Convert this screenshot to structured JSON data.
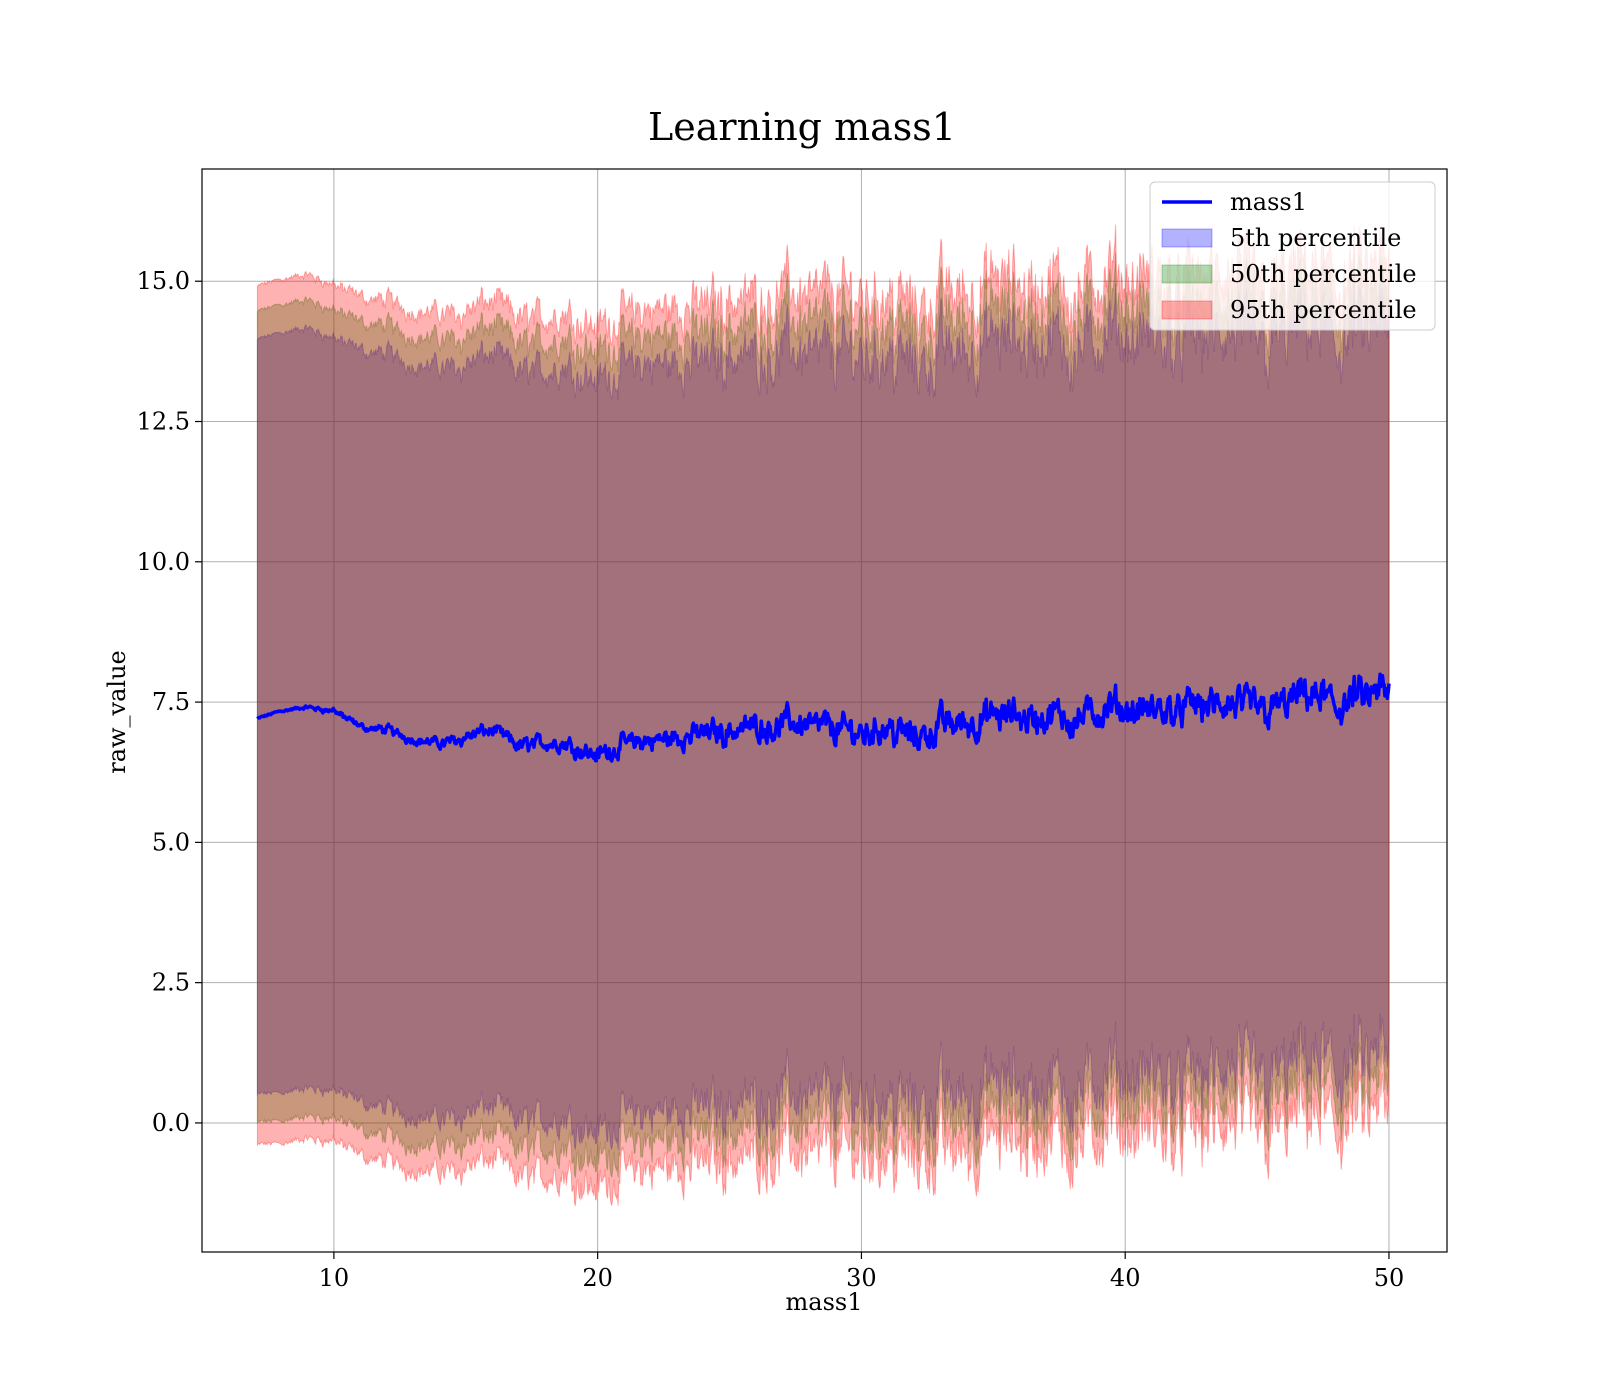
{
  "chart_data": {
    "type": "area",
    "title": "Learning mass1",
    "xlabel": "mass1",
    "ylabel": "raw_value",
    "xlim": [
      5,
      52.2
    ],
    "ylim": [
      -2.3,
      17
    ],
    "xticks": [
      10,
      20,
      30,
      40,
      50
    ],
    "yticks": [
      0,
      2.5,
      5,
      7.5,
      10,
      12.5,
      15
    ],
    "ytick_labels": [
      "0.0",
      "2.5",
      "5.0",
      "7.5",
      "10.0",
      "12.5",
      "15.0"
    ],
    "grid": true,
    "legend_position": "top-right",
    "x_range": [
      7.1,
      50
    ],
    "mean_line": {
      "name": "mass1",
      "color": "#0000ff",
      "x": [
        7.1,
        8,
        9,
        10,
        11,
        12,
        13,
        14,
        15,
        16,
        17,
        18,
        19,
        20,
        21,
        22,
        23,
        24,
        25,
        26,
        27,
        28,
        29,
        30,
        31,
        32,
        33,
        34,
        35,
        36,
        37,
        38,
        39,
        40,
        41,
        42,
        43,
        44,
        45,
        46,
        47,
        48,
        49,
        50
      ],
      "y": [
        7.2,
        7.35,
        7.4,
        7.35,
        7.05,
        7.0,
        6.85,
        6.75,
        6.9,
        7.0,
        6.7,
        6.8,
        6.75,
        6.55,
        6.75,
        6.8,
        6.85,
        6.95,
        7.0,
        7.1,
        7.1,
        7.15,
        7.0,
        6.95,
        7.1,
        6.85,
        7.1,
        7.15,
        7.2,
        7.25,
        7.2,
        7.25,
        7.3,
        7.35,
        7.3,
        7.4,
        7.45,
        7.35,
        7.4,
        7.45,
        7.6,
        7.45,
        7.55,
        7.6
      ],
      "noise": [
        0.02,
        0.02,
        0.03,
        0.05,
        0.05,
        0.07,
        0.07,
        0.08,
        0.1,
        0.1,
        0.12,
        0.12,
        0.13,
        0.15,
        0.15,
        0.15,
        0.17,
        0.18,
        0.2,
        0.2,
        0.22,
        0.22,
        0.22,
        0.22,
        0.25,
        0.25,
        0.25,
        0.25,
        0.25,
        0.25,
        0.25,
        0.25,
        0.25,
        0.25,
        0.25,
        0.25,
        0.27,
        0.27,
        0.27,
        0.27,
        0.28,
        0.28,
        0.28,
        0.3
      ]
    },
    "bands": [
      {
        "name": "5th percentile",
        "color": "#0000ff",
        "upper": [
          13.95,
          14.1,
          14.15,
          14.0,
          13.75,
          13.7,
          13.55,
          13.45,
          13.55,
          13.7,
          13.35,
          13.45,
          13.5,
          13.25,
          13.45,
          13.5,
          13.5,
          13.6,
          13.7,
          13.7,
          13.75,
          13.8,
          13.65,
          13.7,
          13.8,
          13.45,
          13.75,
          13.8,
          13.85,
          13.9,
          13.85,
          13.85,
          13.9,
          13.95,
          13.9,
          13.95,
          14.0,
          13.85,
          13.9,
          14.0,
          14.1,
          13.95,
          14.0,
          14.05
        ],
        "lower": [
          0.5,
          0.55,
          0.6,
          0.6,
          0.35,
          0.25,
          0.15,
          0.05,
          0.2,
          0.3,
          0.0,
          0.1,
          0.1,
          -0.15,
          0.1,
          0.15,
          0.2,
          0.3,
          0.35,
          0.45,
          0.5,
          0.5,
          0.45,
          0.45,
          0.55,
          0.3,
          0.5,
          0.55,
          0.6,
          0.65,
          0.6,
          0.65,
          0.75,
          0.8,
          0.75,
          0.8,
          0.85,
          0.8,
          0.85,
          0.9,
          1.05,
          0.95,
          1.0,
          1.05
        ]
      },
      {
        "name": "50th percentile",
        "color": "#008000",
        "upper": [
          14.45,
          14.6,
          14.65,
          14.5,
          14.25,
          14.2,
          14.05,
          13.95,
          14.05,
          14.2,
          13.85,
          13.95,
          14.0,
          13.75,
          13.95,
          14.0,
          14.0,
          14.1,
          14.2,
          14.25,
          14.3,
          14.35,
          14.2,
          14.25,
          14.35,
          14.0,
          14.3,
          14.35,
          14.4,
          14.45,
          14.4,
          14.4,
          14.45,
          14.5,
          14.45,
          14.5,
          14.55,
          14.4,
          14.45,
          14.55,
          14.65,
          14.5,
          14.55,
          14.6
        ],
        "lower": [
          0.0,
          0.05,
          0.1,
          0.1,
          -0.15,
          -0.25,
          -0.35,
          -0.45,
          -0.3,
          -0.2,
          -0.5,
          -0.4,
          -0.4,
          -0.65,
          -0.4,
          -0.35,
          -0.3,
          -0.2,
          -0.15,
          -0.05,
          0.0,
          0.0,
          -0.05,
          -0.05,
          0.05,
          -0.2,
          0.0,
          0.05,
          0.1,
          0.15,
          0.1,
          0.15,
          0.25,
          0.3,
          0.25,
          0.3,
          0.35,
          0.3,
          0.35,
          0.4,
          0.55,
          0.45,
          0.5,
          0.55
        ]
      },
      {
        "name": "95th percentile",
        "color": "#ff0000",
        "upper": [
          14.9,
          15.05,
          15.1,
          14.95,
          14.7,
          14.65,
          14.5,
          14.4,
          14.5,
          14.65,
          14.3,
          14.4,
          14.45,
          14.2,
          14.4,
          14.45,
          14.5,
          14.6,
          14.7,
          14.75,
          14.8,
          14.85,
          14.7,
          14.75,
          14.85,
          14.5,
          14.8,
          14.85,
          14.9,
          14.95,
          14.9,
          14.9,
          14.95,
          15.0,
          14.95,
          15.0,
          15.05,
          14.9,
          14.95,
          15.05,
          15.15,
          15.0,
          15.05,
          15.1
        ],
        "lower": [
          -0.4,
          -0.35,
          -0.3,
          -0.3,
          -0.6,
          -0.7,
          -0.8,
          -0.9,
          -0.75,
          -0.65,
          -1.0,
          -0.9,
          -0.9,
          -1.15,
          -0.9,
          -0.85,
          -0.8,
          -0.7,
          -0.65,
          -0.55,
          -0.5,
          -0.5,
          -0.55,
          -0.55,
          -0.45,
          -0.7,
          -0.5,
          -0.45,
          -0.4,
          -0.35,
          -0.4,
          -0.35,
          -0.25,
          -0.2,
          -0.25,
          -0.2,
          -0.15,
          -0.2,
          -0.15,
          -0.1,
          0.05,
          -0.05,
          0.0,
          0.05
        ]
      }
    ],
    "legend": [
      {
        "label": "mass1",
        "kind": "line",
        "color": "#0000ff"
      },
      {
        "label": "5th percentile",
        "kind": "patch",
        "color": "#0000ff"
      },
      {
        "label": "50th percentile",
        "kind": "patch",
        "color": "#008000"
      },
      {
        "label": "95th percentile",
        "kind": "patch",
        "color": "#ff0000"
      }
    ]
  }
}
